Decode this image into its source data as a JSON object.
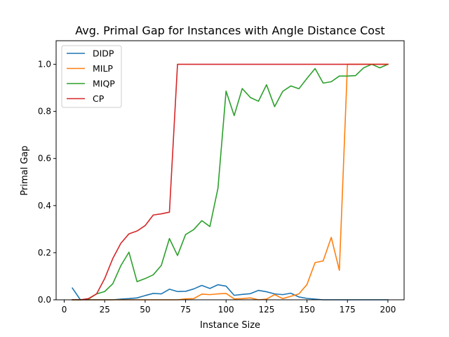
{
  "chart_data": {
    "type": "line",
    "title": "Avg. Primal Gap for Instances with Angle Distance Cost",
    "xlabel": "Instance Size",
    "ylabel": "Primal Gap",
    "xlim": [
      -5,
      210
    ],
    "ylim": [
      0,
      1.1
    ],
    "xticks": [
      0,
      25,
      50,
      75,
      100,
      125,
      150,
      175,
      200
    ],
    "xtick_labels": [
      "0",
      "25",
      "50",
      "75",
      "100",
      "125",
      "150",
      "175",
      "200"
    ],
    "yticks": [
      0,
      0.2,
      0.4,
      0.6,
      0.8,
      1.0
    ],
    "ytick_labels": [
      "0.0",
      "0.2",
      "0.4",
      "0.6",
      "0.8",
      "1.0"
    ],
    "grid": false,
    "legend_position": "upper-left",
    "x": [
      5,
      10,
      15,
      20,
      25,
      30,
      35,
      40,
      45,
      50,
      55,
      60,
      65,
      70,
      75,
      80,
      85,
      90,
      95,
      100,
      105,
      110,
      115,
      120,
      125,
      130,
      135,
      140,
      145,
      150,
      155,
      160,
      165,
      170,
      175,
      180,
      185,
      190,
      195,
      200
    ],
    "series": [
      {
        "name": "DIDP",
        "color": "#1f77b4",
        "values": [
          0.05,
          0.0,
          0.0,
          0.0,
          0.0,
          0.0,
          0.003,
          0.005,
          0.008,
          0.018,
          0.027,
          0.025,
          0.045,
          0.035,
          0.036,
          0.046,
          0.061,
          0.048,
          0.064,
          0.058,
          0.019,
          0.023,
          0.026,
          0.04,
          0.034,
          0.025,
          0.022,
          0.028,
          0.012,
          0.006,
          0.003,
          0.0,
          0.0,
          0.0,
          0.0,
          0.0,
          0.0,
          0.0,
          0.0,
          0.0
        ]
      },
      {
        "name": "MILP",
        "color": "#ff7f0e",
        "values": [
          0.0,
          0.0,
          0.0,
          0.0,
          0.0,
          0.0,
          0.0,
          0.0,
          0.0,
          0.0,
          0.0,
          0.0,
          0.0,
          0.0,
          0.004,
          0.005,
          0.024,
          0.022,
          0.025,
          0.027,
          0.004,
          0.005,
          0.008,
          0.0,
          0.003,
          0.022,
          0.005,
          0.015,
          0.025,
          0.065,
          0.158,
          0.165,
          0.265,
          0.125,
          1.0,
          1.0,
          1.0,
          1.0,
          1.0,
          1.0
        ]
      },
      {
        "name": "MIQP",
        "color": "#2ca02c",
        "values": [
          0.0,
          0.0,
          0.003,
          0.025,
          0.035,
          0.068,
          0.145,
          0.202,
          0.077,
          0.09,
          0.106,
          0.146,
          0.26,
          0.188,
          0.277,
          0.298,
          0.336,
          0.311,
          0.474,
          0.886,
          0.782,
          0.897,
          0.859,
          0.843,
          0.913,
          0.82,
          0.885,
          0.908,
          0.896,
          0.94,
          0.982,
          0.92,
          0.926,
          0.95,
          0.95,
          0.952,
          0.985,
          1.0,
          0.985,
          1.0
        ]
      },
      {
        "name": "CP",
        "color": "#d62728",
        "values": [
          0.0,
          0.0,
          0.005,
          0.025,
          0.09,
          0.175,
          0.24,
          0.28,
          0.292,
          0.315,
          0.36,
          0.365,
          0.372,
          1.0,
          1.0,
          1.0,
          1.0,
          1.0,
          1.0,
          1.0,
          1.0,
          1.0,
          1.0,
          1.0,
          1.0,
          1.0,
          1.0,
          1.0,
          1.0,
          1.0,
          1.0,
          1.0,
          1.0,
          1.0,
          1.0,
          1.0,
          1.0,
          1.0,
          1.0,
          1.0
        ]
      }
    ]
  }
}
